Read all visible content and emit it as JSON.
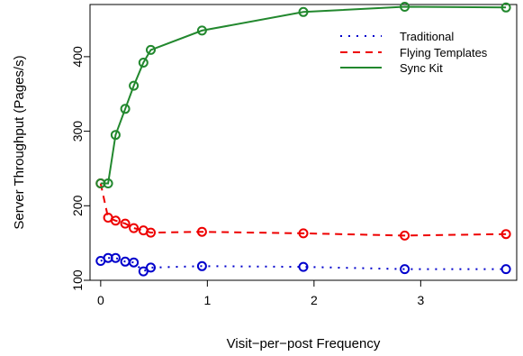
{
  "chart_data": {
    "type": "line",
    "title": "",
    "xlabel": "Visit−per−post Frequency",
    "ylabel": "Server Throughput (Pages/s)",
    "xlim": [
      -0.1,
      3.9
    ],
    "ylim": [
      100,
      470
    ],
    "x_ticks": [
      0,
      1,
      2,
      3
    ],
    "x_tick_labels": [
      "0",
      "1",
      "2",
      "3"
    ],
    "y_ticks": [
      100,
      200,
      300,
      400
    ],
    "y_tick_labels": [
      "100",
      "200",
      "300",
      "400"
    ],
    "grid": false,
    "legend_position": "top-right",
    "series": [
      {
        "name": "Traditional",
        "color": "#0000cc",
        "line_style": "dotted",
        "marker": "circle",
        "x": [
          0,
          0.07,
          0.14,
          0.23,
          0.31,
          0.4,
          0.47,
          0.95,
          1.9,
          2.85,
          3.8
        ],
        "y": [
          126,
          130,
          130,
          125,
          124,
          112,
          117,
          119,
          118,
          115,
          115
        ]
      },
      {
        "name": "Flying Templates",
        "color": "#ee0000",
        "line_style": "dashed",
        "marker": "circle",
        "x": [
          0,
          0.07,
          0.14,
          0.23,
          0.31,
          0.4,
          0.47,
          0.95,
          1.9,
          2.85,
          3.8
        ],
        "y": [
          230,
          184,
          180,
          176,
          170,
          167,
          164,
          165,
          163,
          160,
          162
        ]
      },
      {
        "name": "Sync Kit",
        "color": "#22882e",
        "line_style": "solid",
        "marker": "circle",
        "x": [
          0,
          0.07,
          0.14,
          0.23,
          0.31,
          0.4,
          0.47,
          0.95,
          1.9,
          2.85,
          3.8
        ],
        "y": [
          230,
          230,
          295,
          330,
          361,
          392,
          409,
          435,
          460,
          467,
          466
        ]
      }
    ]
  }
}
